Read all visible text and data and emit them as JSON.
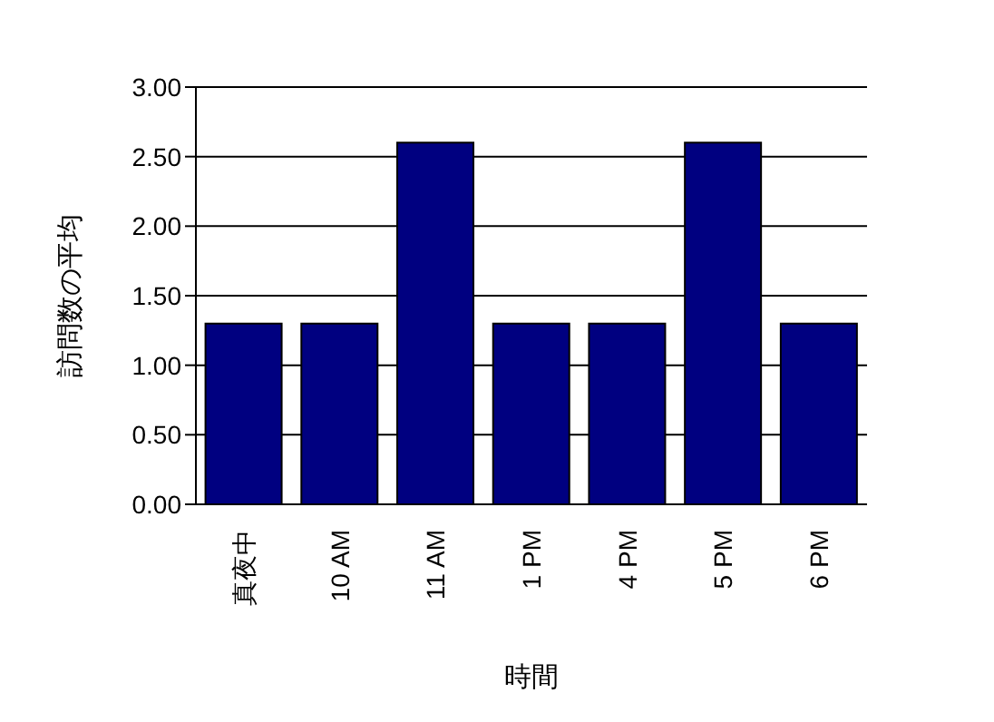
{
  "chart_data": {
    "type": "bar",
    "xlabel": "時間",
    "ylabel": "訪問数の平均",
    "categories": [
      "真夜中",
      "10 AM",
      "11 AM",
      "1 PM",
      "4 PM",
      "5 PM",
      "6 PM"
    ],
    "values": [
      1.3,
      1.3,
      2.6,
      1.3,
      1.3,
      2.6,
      1.3
    ],
    "color": "#000080",
    "ylim": [
      0,
      3
    ],
    "yticks": [
      {
        "value": 0,
        "label": "0.00"
      },
      {
        "value": 0.5,
        "label": "0.50"
      },
      {
        "value": 1,
        "label": "1.00"
      },
      {
        "value": 1.5,
        "label": "1.50"
      },
      {
        "value": 2,
        "label": "2.00"
      },
      {
        "value": 2.5,
        "label": "2.50"
      },
      {
        "value": 3,
        "label": "3.00"
      }
    ],
    "grid": "y",
    "legend": false
  }
}
